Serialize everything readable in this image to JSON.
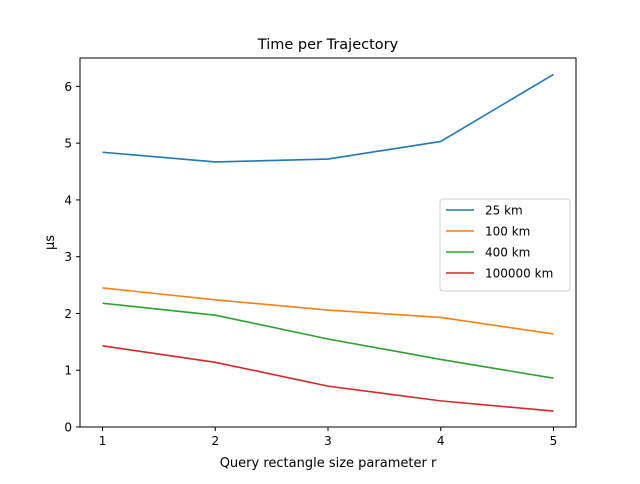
{
  "chart_data": {
    "type": "line",
    "title": "Time per Trajectory",
    "xlabel": "Query rectangle size parameter r",
    "ylabel": "μs",
    "x": [
      1,
      2,
      3,
      4,
      5
    ],
    "xlim": [
      0.8,
      5.2
    ],
    "ylim": [
      0,
      6.5
    ],
    "xticks": [
      1,
      2,
      3,
      4,
      5
    ],
    "yticks": [
      0,
      1,
      2,
      3,
      4,
      5,
      6
    ],
    "grid": false,
    "legend_position": "center-right",
    "series": [
      {
        "name": "25 km",
        "color": "#1f77b4",
        "values": [
          4.84,
          4.67,
          4.72,
          5.03,
          6.21
        ]
      },
      {
        "name": "100 km",
        "color": "#ff7f0e",
        "values": [
          2.45,
          2.24,
          2.06,
          1.93,
          1.64
        ]
      },
      {
        "name": "400 km",
        "color": "#2ca02c",
        "values": [
          2.18,
          1.97,
          1.55,
          1.19,
          0.86
        ]
      },
      {
        "name": "100000 km",
        "color": "#d62728",
        "values": [
          1.43,
          1.14,
          0.72,
          0.46,
          0.28
        ]
      }
    ]
  }
}
